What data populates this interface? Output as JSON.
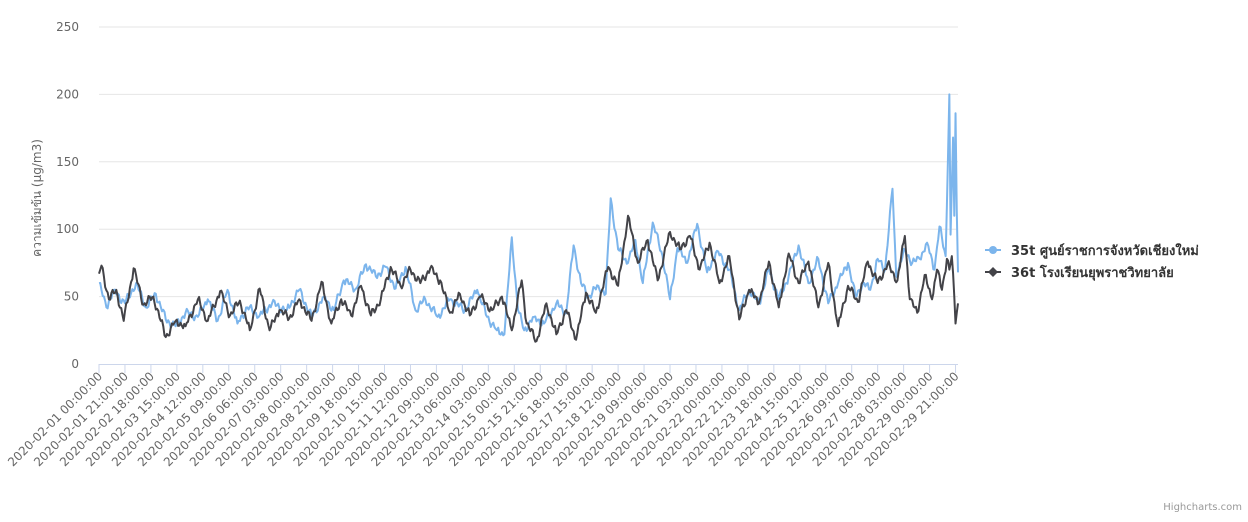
{
  "chart_data": {
    "type": "line",
    "ylabel": "ความเข้มข้น (µg/m3)",
    "ylim": [
      0,
      250
    ],
    "yticks": [
      0,
      50,
      100,
      150,
      200,
      250
    ],
    "grid": true,
    "legend_position": "right",
    "x_start": "2020-02-01 00:00:00",
    "x_end": "2020-02-29 23:00:00",
    "x_step_hours": 1,
    "xtick_labels": [
      "2020-02-01 00:00:00",
      "2020-02-01 21:00:00",
      "2020-02-02 18:00:00",
      "2020-02-03 15:00:00",
      "2020-02-04 12:00:00",
      "2020-02-05 09:00:00",
      "2020-02-06 06:00:00",
      "2020-02-07 03:00:00",
      "2020-02-08 00:00:00",
      "2020-02-08 21:00:00",
      "2020-02-09 18:00:00",
      "2020-02-10 15:00:00",
      "2020-02-11 12:00:00",
      "2020-02-12 09:00:00",
      "2020-02-13 06:00:00",
      "2020-02-14 03:00:00",
      "2020-02-15 00:00:00",
      "2020-02-15 21:00:00",
      "2020-02-16 18:00:00",
      "2020-02-17 15:00:00",
      "2020-02-18 12:00:00",
      "2020-02-19 09:00:00",
      "2020-02-20 06:00:00",
      "2020-02-21 03:00:00",
      "2020-02-22 00:00:00",
      "2020-02-22 21:00:00",
      "2020-02-23 18:00:00",
      "2020-02-24 15:00:00",
      "2020-02-25 12:00:00",
      "2020-02-26 09:00:00",
      "2020-02-27 06:00:00",
      "2020-02-28 03:00:00",
      "2020-02-29 00:00:00",
      "2020-02-29 21:00:00"
    ],
    "series": [
      {
        "name": "35t ศูนย์ราชการจังหวัดเชียงใหม่",
        "color": "#7cb5ec",
        "keypoints": [
          [
            "2020-02-01 00:00:00",
            60
          ],
          [
            "2020-02-01 06:00:00",
            42
          ],
          [
            "2020-02-01 12:00:00",
            55
          ],
          [
            "2020-02-01 21:00:00",
            45
          ],
          [
            "2020-02-02 06:00:00",
            60
          ],
          [
            "2020-02-02 14:00:00",
            42
          ],
          [
            "2020-02-02 22:00:00",
            52
          ],
          [
            "2020-02-03 06:00:00",
            33
          ],
          [
            "2020-02-03 14:00:00",
            28
          ],
          [
            "2020-02-03 22:00:00",
            38
          ],
          [
            "2020-02-04 08:00:00",
            35
          ],
          [
            "2020-02-04 16:00:00",
            48
          ],
          [
            "2020-02-05 00:00:00",
            32
          ],
          [
            "2020-02-05 08:00:00",
            55
          ],
          [
            "2020-02-05 16:00:00",
            30
          ],
          [
            "2020-02-06 00:00:00",
            42
          ],
          [
            "2020-02-06 10:00:00",
            36
          ],
          [
            "2020-02-06 20:00:00",
            45
          ],
          [
            "2020-02-07 08:00:00",
            40
          ],
          [
            "2020-02-07 18:00:00",
            55
          ],
          [
            "2020-02-08 04:00:00",
            35
          ],
          [
            "2020-02-08 14:00:00",
            50
          ],
          [
            "2020-02-08 22:00:00",
            40
          ],
          [
            "2020-02-09 06:00:00",
            62
          ],
          [
            "2020-02-09 16:00:00",
            56
          ],
          [
            "2020-02-10 00:00:00",
            74
          ],
          [
            "2020-02-10 08:00:00",
            65
          ],
          [
            "2020-02-10 16:00:00",
            72
          ],
          [
            "2020-02-11 00:00:00",
            56
          ],
          [
            "2020-02-11 08:00:00",
            72
          ],
          [
            "2020-02-11 16:00:00",
            40
          ],
          [
            "2020-02-12 00:00:00",
            48
          ],
          [
            "2020-02-12 10:00:00",
            35
          ],
          [
            "2020-02-12 20:00:00",
            48
          ],
          [
            "2020-02-13 08:00:00",
            40
          ],
          [
            "2020-02-13 18:00:00",
            55
          ],
          [
            "2020-02-14 02:00:00",
            35
          ],
          [
            "2020-02-14 10:00:00",
            25
          ],
          [
            "2020-02-14 16:00:00",
            22
          ],
          [
            "2020-02-14 22:00:00",
            94
          ],
          [
            "2020-02-15 03:00:00",
            40
          ],
          [
            "2020-02-15 08:00:00",
            25
          ],
          [
            "2020-02-15 16:00:00",
            35
          ],
          [
            "2020-02-16 00:00:00",
            30
          ],
          [
            "2020-02-16 10:00:00",
            45
          ],
          [
            "2020-02-16 18:00:00",
            38
          ],
          [
            "2020-02-17 00:00:00",
            88
          ],
          [
            "2020-02-17 06:00:00",
            60
          ],
          [
            "2020-02-17 12:00:00",
            50
          ],
          [
            "2020-02-17 20:00:00",
            58
          ],
          [
            "2020-02-18 02:00:00",
            52
          ],
          [
            "2020-02-18 06:00:00",
            123
          ],
          [
            "2020-02-18 12:00:00",
            85
          ],
          [
            "2020-02-18 20:00:00",
            75
          ],
          [
            "2020-02-19 02:00:00",
            92
          ],
          [
            "2020-02-19 08:00:00",
            60
          ],
          [
            "2020-02-19 16:00:00",
            105
          ],
          [
            "2020-02-20 00:00:00",
            80
          ],
          [
            "2020-02-20 06:00:00",
            48
          ],
          [
            "2020-02-20 12:00:00",
            86
          ],
          [
            "2020-02-20 20:00:00",
            75
          ],
          [
            "2020-02-21 04:00:00",
            104
          ],
          [
            "2020-02-21 12:00:00",
            68
          ],
          [
            "2020-02-21 20:00:00",
            84
          ],
          [
            "2020-02-22 06:00:00",
            70
          ],
          [
            "2020-02-22 14:00:00",
            40
          ],
          [
            "2020-02-22 22:00:00",
            55
          ],
          [
            "2020-02-23 06:00:00",
            45
          ],
          [
            "2020-02-23 14:00:00",
            70
          ],
          [
            "2020-02-23 22:00:00",
            48
          ],
          [
            "2020-02-24 06:00:00",
            65
          ],
          [
            "2020-02-24 14:00:00",
            88
          ],
          [
            "2020-02-24 22:00:00",
            60
          ],
          [
            "2020-02-25 06:00:00",
            78
          ],
          [
            "2020-02-25 14:00:00",
            45
          ],
          [
            "2020-02-25 22:00:00",
            60
          ],
          [
            "2020-02-26 06:00:00",
            75
          ],
          [
            "2020-02-26 12:00:00",
            50
          ],
          [
            "2020-02-26 18:00:00",
            60
          ],
          [
            "2020-02-27 00:00:00",
            55
          ],
          [
            "2020-02-27 06:00:00",
            78
          ],
          [
            "2020-02-27 12:00:00",
            70
          ],
          [
            "2020-02-27 18:00:00",
            130
          ],
          [
            "2020-02-27 21:00:00",
            65
          ],
          [
            "2020-02-28 04:00:00",
            85
          ],
          [
            "2020-02-28 10:00:00",
            75
          ],
          [
            "2020-02-28 16:00:00",
            78
          ],
          [
            "2020-02-28 22:00:00",
            90
          ],
          [
            "2020-02-29 04:00:00",
            70
          ],
          [
            "2020-02-29 08:00:00",
            102
          ],
          [
            "2020-02-29 13:00:00",
            80
          ],
          [
            "2020-02-29 16:00:00",
            200
          ],
          [
            "2020-02-29 17:00:00",
            96
          ],
          [
            "2020-02-29 19:00:00",
            168
          ],
          [
            "2020-02-29 20:00:00",
            110
          ],
          [
            "2020-02-29 21:00:00",
            186
          ],
          [
            "2020-02-29 22:00:00",
            114
          ],
          [
            "2020-02-29 23:00:00",
            68
          ]
        ]
      },
      {
        "name": "36t โรงเรียนยุพราชวิทยาลัย",
        "color": "#434348",
        "keypoints": [
          [
            "2020-02-01 00:00:00",
            67
          ],
          [
            "2020-02-01 02:00:00",
            73
          ],
          [
            "2020-02-01 08:00:00",
            48
          ],
          [
            "2020-02-01 14:00:00",
            55
          ],
          [
            "2020-02-01 20:00:00",
            32
          ],
          [
            "2020-02-02 04:00:00",
            71
          ],
          [
            "2020-02-02 12:00:00",
            44
          ],
          [
            "2020-02-02 20:00:00",
            50
          ],
          [
            "2020-02-03 06:00:00",
            20
          ],
          [
            "2020-02-03 14:00:00",
            32
          ],
          [
            "2020-02-03 22:00:00",
            28
          ],
          [
            "2020-02-04 08:00:00",
            48
          ],
          [
            "2020-02-04 16:00:00",
            32
          ],
          [
            "2020-02-05 02:00:00",
            54
          ],
          [
            "2020-02-05 10:00:00",
            36
          ],
          [
            "2020-02-05 18:00:00",
            47
          ],
          [
            "2020-02-06 02:00:00",
            25
          ],
          [
            "2020-02-06 10:00:00",
            56
          ],
          [
            "2020-02-06 18:00:00",
            25
          ],
          [
            "2020-02-07 02:00:00",
            40
          ],
          [
            "2020-02-07 10:00:00",
            34
          ],
          [
            "2020-02-07 18:00:00",
            48
          ],
          [
            "2020-02-08 04:00:00",
            32
          ],
          [
            "2020-02-08 12:00:00",
            61
          ],
          [
            "2020-02-08 20:00:00",
            30
          ],
          [
            "2020-02-09 04:00:00",
            48
          ],
          [
            "2020-02-09 12:00:00",
            36
          ],
          [
            "2020-02-09 20:00:00",
            58
          ],
          [
            "2020-02-10 04:00:00",
            36
          ],
          [
            "2020-02-10 12:00:00",
            48
          ],
          [
            "2020-02-10 20:00:00",
            72
          ],
          [
            "2020-02-11 04:00:00",
            58
          ],
          [
            "2020-02-11 12:00:00",
            70
          ],
          [
            "2020-02-11 20:00:00",
            60
          ],
          [
            "2020-02-12 04:00:00",
            71
          ],
          [
            "2020-02-12 12:00:00",
            62
          ],
          [
            "2020-02-12 20:00:00",
            38
          ],
          [
            "2020-02-13 04:00:00",
            52
          ],
          [
            "2020-02-13 12:00:00",
            36
          ],
          [
            "2020-02-13 20:00:00",
            50
          ],
          [
            "2020-02-14 06:00:00",
            40
          ],
          [
            "2020-02-14 14:00:00",
            50
          ],
          [
            "2020-02-14 22:00:00",
            25
          ],
          [
            "2020-02-15 06:00:00",
            62
          ],
          [
            "2020-02-15 10:00:00",
            30
          ],
          [
            "2020-02-15 18:00:00",
            17
          ],
          [
            "2020-02-16 02:00:00",
            45
          ],
          [
            "2020-02-16 10:00:00",
            22
          ],
          [
            "2020-02-16 18:00:00",
            40
          ],
          [
            "2020-02-17 02:00:00",
            18
          ],
          [
            "2020-02-17 10:00:00",
            53
          ],
          [
            "2020-02-17 18:00:00",
            38
          ],
          [
            "2020-02-18 04:00:00",
            72
          ],
          [
            "2020-02-18 12:00:00",
            58
          ],
          [
            "2020-02-18 20:00:00",
            110
          ],
          [
            "2020-02-19 04:00:00",
            75
          ],
          [
            "2020-02-19 12:00:00",
            92
          ],
          [
            "2020-02-19 20:00:00",
            62
          ],
          [
            "2020-02-20 06:00:00",
            98
          ],
          [
            "2020-02-20 14:00:00",
            85
          ],
          [
            "2020-02-20 22:00:00",
            95
          ],
          [
            "2020-02-21 06:00:00",
            70
          ],
          [
            "2020-02-21 14:00:00",
            90
          ],
          [
            "2020-02-21 22:00:00",
            60
          ],
          [
            "2020-02-22 06:00:00",
            80
          ],
          [
            "2020-02-22 14:00:00",
            33
          ],
          [
            "2020-02-22 22:00:00",
            55
          ],
          [
            "2020-02-23 06:00:00",
            45
          ],
          [
            "2020-02-23 14:00:00",
            76
          ],
          [
            "2020-02-23 22:00:00",
            42
          ],
          [
            "2020-02-24 06:00:00",
            82
          ],
          [
            "2020-02-24 14:00:00",
            60
          ],
          [
            "2020-02-24 22:00:00",
            76
          ],
          [
            "2020-02-25 06:00:00",
            42
          ],
          [
            "2020-02-25 14:00:00",
            75
          ],
          [
            "2020-02-25 22:00:00",
            28
          ],
          [
            "2020-02-26 06:00:00",
            58
          ],
          [
            "2020-02-26 14:00:00",
            46
          ],
          [
            "2020-02-26 22:00:00",
            76
          ],
          [
            "2020-02-27 06:00:00",
            60
          ],
          [
            "2020-02-27 14:00:00",
            74
          ],
          [
            "2020-02-27 22:00:00",
            62
          ],
          [
            "2020-02-28 04:00:00",
            95
          ],
          [
            "2020-02-28 08:00:00",
            48
          ],
          [
            "2020-02-28 14:00:00",
            38
          ],
          [
            "2020-02-28 20:00:00",
            66
          ],
          [
            "2020-02-29 02:00:00",
            48
          ],
          [
            "2020-02-29 06:00:00",
            70
          ],
          [
            "2020-02-29 10:00:00",
            55
          ],
          [
            "2020-02-29 14:00:00",
            78
          ],
          [
            "2020-02-29 16:00:00",
            70
          ],
          [
            "2020-02-29 18:00:00",
            80
          ],
          [
            "2020-02-29 20:00:00",
            50
          ],
          [
            "2020-02-29 21:00:00",
            30
          ],
          [
            "2020-02-29 22:00:00",
            38
          ],
          [
            "2020-02-29 23:00:00",
            45
          ]
        ]
      }
    ],
    "credits": "Highcharts.com"
  }
}
